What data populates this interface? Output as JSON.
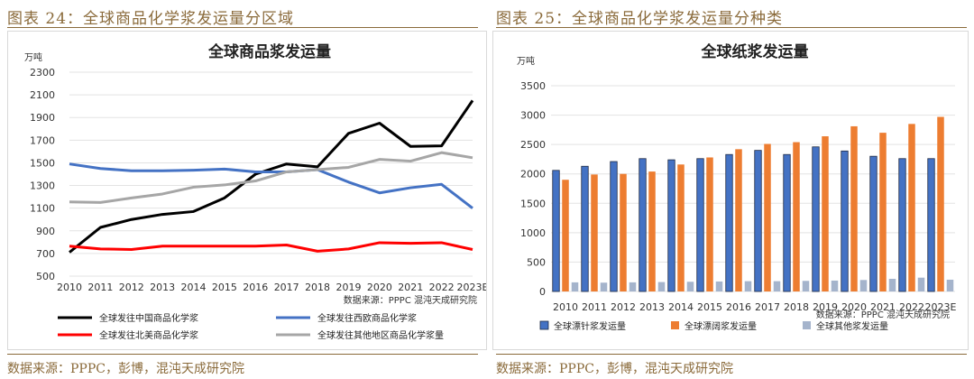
{
  "left": {
    "figure_title": "图表 24：全球商品化学浆发运量分区域",
    "source": "数据来源：PPPC，彭博，混沌天成研究院"
  },
  "right": {
    "figure_title": "图表 25：全球商品化学浆发运量分种类",
    "source": "数据来源：PPPC，彭博，混沌天成研究院"
  },
  "chart_data": [
    {
      "type": "line",
      "title": "全球商品浆发运量",
      "ylabel": "万吨",
      "inner_source": "数据来源：PPPC  混沌天成研究院",
      "categories": [
        "2010",
        "2011",
        "2012",
        "2013",
        "2014",
        "2015",
        "2016",
        "2017",
        "2018",
        "2019",
        "2020",
        "2021",
        "2022",
        "2023E"
      ],
      "ylim": [
        500,
        2300
      ],
      "yticks": [
        500,
        700,
        900,
        1100,
        1300,
        1500,
        1700,
        1900,
        2100,
        2300
      ],
      "grid": true,
      "legend_position": "bottom",
      "series": [
        {
          "name": "全球发往中国商品化学浆",
          "color": "#000000",
          "values": [
            710,
            930,
            1000,
            1045,
            1070,
            1190,
            1400,
            1490,
            1465,
            1760,
            1850,
            1645,
            1650,
            2050
          ]
        },
        {
          "name": "全球发往西欧商品化学浆",
          "color": "#4472c4",
          "values": [
            1490,
            1450,
            1430,
            1430,
            1435,
            1445,
            1420,
            1420,
            1440,
            1330,
            1235,
            1280,
            1310,
            1100
          ]
        },
        {
          "name": "全球发往北美商品化学浆",
          "color": "#ff0000",
          "values": [
            765,
            740,
            735,
            765,
            765,
            765,
            765,
            775,
            720,
            740,
            795,
            790,
            795,
            735
          ]
        },
        {
          "name": "全球发往其他地区商品化学浆量",
          "color": "#a6a6a6",
          "values": [
            1155,
            1150,
            1190,
            1225,
            1285,
            1305,
            1340,
            1420,
            1440,
            1460,
            1530,
            1515,
            1590,
            1545
          ]
        }
      ]
    },
    {
      "type": "bar",
      "title": "全球纸浆发运量",
      "ylabel": "万吨",
      "inner_source": "数据来源：PPPC  混沌天成研究院",
      "categories": [
        "2010",
        "2011",
        "2012",
        "2013",
        "2014",
        "2015",
        "2016",
        "2017",
        "2018",
        "2019",
        "2020",
        "2021",
        "2022",
        "2023E"
      ],
      "ylim": [
        0,
        3500
      ],
      "yticks": [
        0,
        500,
        1000,
        1500,
        2000,
        2500,
        3000,
        3500
      ],
      "grid": true,
      "legend_position": "bottom",
      "series": [
        {
          "name": "全球漂针浆发运量",
          "color": "#4472c4",
          "values": [
            2060,
            2130,
            2210,
            2260,
            2240,
            2260,
            2330,
            2400,
            2330,
            2460,
            2390,
            2300,
            2260,
            2260
          ]
        },
        {
          "name": "全球漂阔浆发运量",
          "color": "#ed7d31",
          "values": [
            1900,
            1990,
            2000,
            2040,
            2160,
            2280,
            2420,
            2510,
            2540,
            2640,
            2810,
            2700,
            2850,
            2970
          ]
        },
        {
          "name": "全球其他浆发运量",
          "color": "#a5b4cc",
          "values": [
            155,
            150,
            155,
            160,
            165,
            170,
            175,
            175,
            180,
            185,
            195,
            215,
            235,
            200
          ]
        }
      ]
    }
  ]
}
